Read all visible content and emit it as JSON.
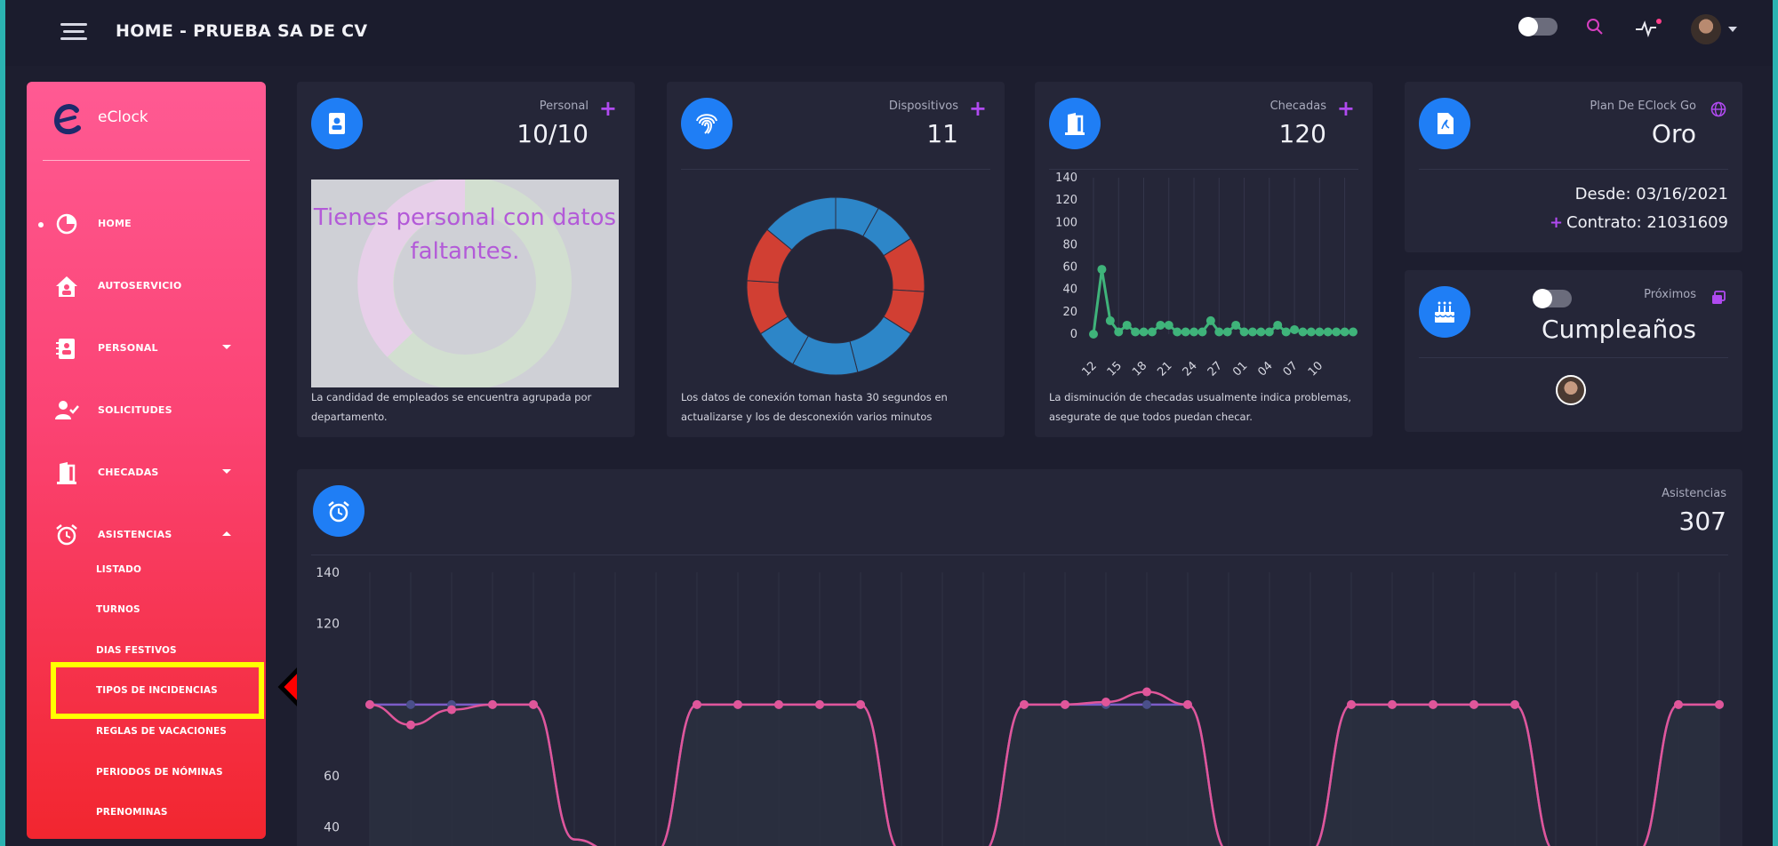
{
  "header": {
    "title": "HOME - PRUEBA SA DE CV",
    "icons": [
      "menu-icon",
      "theme-toggle",
      "search-icon",
      "activity-icon",
      "user-avatar"
    ]
  },
  "sidebar": {
    "brand": "eClock",
    "items": [
      {
        "label": "HOME",
        "icon": "pie-chart-icon"
      },
      {
        "label": "AUTOSERVICIO",
        "icon": "house-user-icon"
      },
      {
        "label": "PERSONAL",
        "icon": "address-book-icon"
      },
      {
        "label": "SOLICITUDES",
        "icon": "user-check-icon"
      },
      {
        "label": "CHECADAS",
        "icon": "door-icon"
      },
      {
        "label": "ASISTENCIAS",
        "icon": "alarm-clock-icon"
      }
    ],
    "sub_items": [
      {
        "label": "LISTADO"
      },
      {
        "label": "TURNOS"
      },
      {
        "label": "DIAS FESTIVOS"
      },
      {
        "label": "TIPOS DE INCIDENCIAS"
      },
      {
        "label": "REGLAS DE VACACIONES"
      },
      {
        "label": "PERIODOS DE NÓMINAS"
      },
      {
        "label": "PRENOMINAS"
      }
    ]
  },
  "cards": {
    "personal": {
      "caption": "Personal",
      "value": "10/10",
      "overlay": "Tienes personal con datos faltantes.",
      "footer": "La candidad de empleados se encuentra agrupada por departamento."
    },
    "dispositivos": {
      "caption": "Dispositivos",
      "value": "11",
      "footer": "Los datos de conexión toman hasta 30 segundos en actualizarse y los de desconexión varios minutos"
    },
    "checadas": {
      "caption": "Checadas",
      "value": "120",
      "footer": "La disminución de checadas usualmente indica problemas, asegurate de que todos puedan checar."
    },
    "plan": {
      "caption": "Plan De EClock Go",
      "value": "Oro",
      "from": "Desde: 03/16/2021",
      "contract": "Contrato: 21031609"
    },
    "birthdays": {
      "caption": "Próximos",
      "value": "Cumpleaños"
    },
    "asistencias": {
      "caption": "Asistencias",
      "value": "307"
    }
  },
  "chart_data": [
    {
      "type": "pie",
      "title": "",
      "slices": [
        {
          "label": "",
          "value": 8,
          "color": "#2d86c8"
        },
        {
          "label": "",
          "value": 8,
          "color": "#2d86c8"
        },
        {
          "label": "",
          "value": 10,
          "color": "#d13f33"
        },
        {
          "label": "",
          "value": 8,
          "color": "#d13f33"
        },
        {
          "label": "",
          "value": 12,
          "color": "#2d86c8"
        },
        {
          "label": "",
          "value": 12,
          "color": "#2d86c8"
        },
        {
          "label": "",
          "value": 8,
          "color": "#2d86c8"
        },
        {
          "label": "",
          "value": 10,
          "color": "#d13f33"
        },
        {
          "label": "",
          "value": 10,
          "color": "#d13f33"
        },
        {
          "label": "",
          "value": 14,
          "color": "#2d86c8"
        }
      ]
    },
    {
      "type": "line",
      "title": "",
      "categories": [
        "12",
        "13",
        "14",
        "15",
        "16",
        "17",
        "18",
        "19",
        "20",
        "21",
        "22",
        "23",
        "24",
        "25",
        "26",
        "27",
        "28",
        "29",
        "30",
        "31",
        "01",
        "02",
        "03",
        "04",
        "05",
        "06",
        "07",
        "08",
        "09",
        "10",
        "11",
        "12"
      ],
      "tick_labels": [
        "12",
        "15",
        "18",
        "21",
        "24",
        "27",
        "01",
        "04",
        "07",
        "10"
      ],
      "series": [
        {
          "values": [
            0,
            58,
            12,
            2,
            8,
            2,
            2,
            2,
            8,
            8,
            2,
            2,
            2,
            2,
            12,
            2,
            2,
            8,
            2,
            2,
            2,
            2,
            8,
            2,
            4,
            2,
            2,
            2,
            2,
            2,
            2,
            2
          ],
          "color": "#3fb37a"
        }
      ],
      "ylim": [
        0,
        140
      ],
      "yticks": [
        0,
        20,
        40,
        60,
        80,
        100,
        120,
        140
      ],
      "grid": true
    },
    {
      "type": "line",
      "title": "",
      "yticks_visible": [
        140,
        120,
        60,
        40
      ],
      "ylim": [
        30,
        140
      ],
      "series": [
        {
          "values": [
            88,
            88,
            88,
            88,
            88,
            35,
            30,
            30,
            88,
            88,
            88,
            88,
            88,
            30,
            30,
            30,
            88,
            88,
            88,
            88,
            88,
            30,
            30,
            30,
            88,
            88,
            88,
            88,
            88,
            30,
            30,
            30,
            88,
            88
          ],
          "color": "#7c5cc8"
        },
        {
          "values": [
            88,
            80,
            86,
            88,
            88,
            35,
            30,
            30,
            88,
            88,
            88,
            88,
            88,
            30,
            30,
            30,
            88,
            88,
            89,
            93,
            88,
            30,
            30,
            30,
            88,
            88,
            88,
            88,
            88,
            30,
            30,
            30,
            88,
            88
          ],
          "color": "#e0569a"
        }
      ],
      "grid": true
    }
  ]
}
